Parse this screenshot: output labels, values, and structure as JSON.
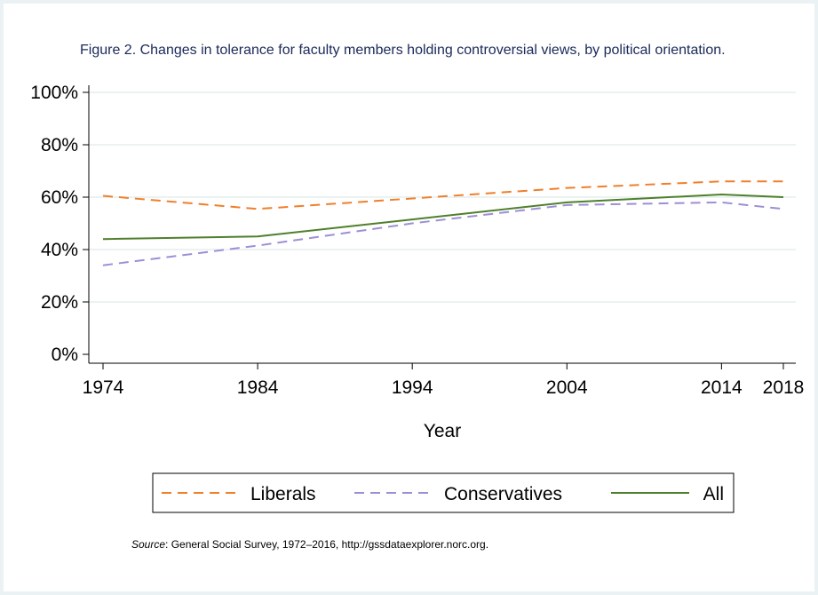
{
  "chart_data": {
    "type": "line",
    "title": "Figure 2. Changes in tolerance for faculty members holding controversial views, by political orientation.",
    "xlabel": "Year",
    "ylabel": "",
    "x": [
      1974,
      1984,
      1994,
      2004,
      2014,
      2018
    ],
    "xticks": [
      "1974",
      "1984",
      "1994",
      "2004",
      "2014",
      "2018"
    ],
    "yticks": [
      "0%",
      "20%",
      "40%",
      "60%",
      "80%",
      "100%"
    ],
    "ylim": [
      0,
      100
    ],
    "grid": true,
    "legend_position": "bottom",
    "series": [
      {
        "name": "Liberals",
        "values": [
          60.5,
          55.5,
          59.5,
          63.5,
          66,
          66
        ],
        "color": "#f07f2a",
        "style": "dashed"
      },
      {
        "name": "Conservatives",
        "values": [
          34,
          41.5,
          50,
          57,
          58,
          55.5
        ],
        "color": "#9d8fd6",
        "style": "dashed"
      },
      {
        "name": "All",
        "values": [
          44,
          45,
          51.5,
          58,
          61,
          60
        ],
        "color": "#4f7f2c",
        "style": "solid"
      }
    ]
  },
  "source": {
    "label": "Source",
    "text": ": General Social Survey, 1972–2016, http://gssdataexplorer.norc.org."
  }
}
